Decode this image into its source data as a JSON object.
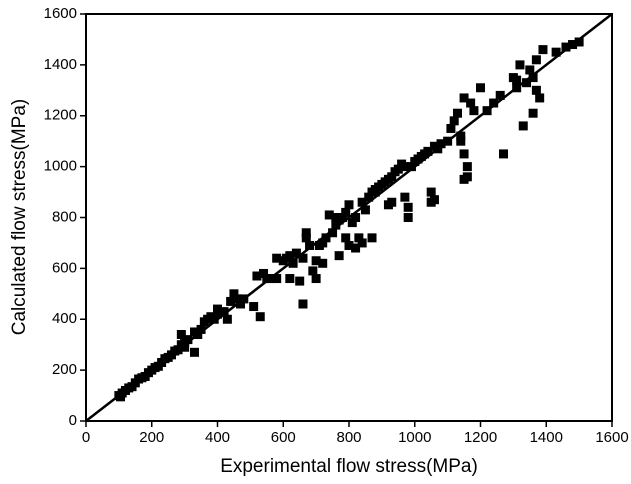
{
  "chart_data": {
    "type": "scatter",
    "x_label": "Experimental flow stress(MPa)",
    "y_label": "Calculated flow stress(MPa)",
    "color": "#000000",
    "xlim": [
      0,
      1600
    ],
    "ylim": [
      0,
      1600
    ],
    "xticks": [
      0,
      200,
      400,
      600,
      800,
      1000,
      1200,
      1400,
      1600
    ],
    "yticks": [
      0,
      200,
      400,
      600,
      800,
      1000,
      1200,
      1400,
      1600
    ],
    "x": [
      100,
      105,
      110,
      120,
      130,
      140,
      150,
      160,
      170,
      180,
      190,
      200,
      210,
      220,
      230,
      240,
      250,
      260,
      270,
      280,
      290,
      290,
      300,
      300,
      310,
      330,
      340,
      350,
      360,
      370,
      380,
      390,
      400,
      400,
      420,
      440,
      450,
      460,
      470,
      510,
      520,
      530,
      540,
      560,
      580,
      600,
      610,
      620,
      630,
      640,
      650,
      660,
      660,
      670,
      670,
      680,
      690,
      700,
      700,
      710,
      720,
      730,
      740,
      750,
      760,
      770,
      780,
      790,
      790,
      800,
      800,
      810,
      820,
      820,
      830,
      840,
      840,
      850,
      860,
      870,
      870,
      880,
      890,
      900,
      910,
      920,
      930,
      940,
      950,
      960,
      970,
      970,
      980,
      980,
      990,
      1000,
      1010,
      1020,
      1030,
      1040,
      1050,
      1050,
      1060,
      1060,
      1070,
      1080,
      1100,
      1110,
      1120,
      1130,
      1140,
      1140,
      1150,
      1150,
      1160,
      1160,
      1150,
      1170,
      1180,
      1200,
      1220,
      1240,
      1260,
      1270,
      1300,
      1310,
      1310,
      1320,
      1330,
      1340,
      1350,
      1360,
      1360,
      1370,
      1370,
      1380,
      1390,
      1430,
      1460,
      1480,
      1500,
      920,
      930,
      720,
      760,
      770,
      580,
      550,
      480,
      430,
      330,
      620,
      880
    ],
    "values": [
      100,
      95,
      110,
      120,
      130,
      135,
      150,
      165,
      170,
      175,
      190,
      200,
      210,
      215,
      230,
      245,
      250,
      260,
      275,
      280,
      300,
      340,
      310,
      290,
      320,
      270,
      340,
      360,
      390,
      400,
      410,
      400,
      420,
      440,
      430,
      470,
      500,
      480,
      460,
      450,
      570,
      410,
      580,
      560,
      560,
      630,
      640,
      560,
      620,
      660,
      550,
      460,
      640,
      720,
      740,
      690,
      590,
      630,
      560,
      690,
      700,
      720,
      810,
      740,
      770,
      790,
      800,
      820,
      720,
      850,
      690,
      780,
      800,
      680,
      720,
      700,
      860,
      830,
      880,
      720,
      900,
      910,
      920,
      930,
      940,
      950,
      960,
      980,
      990,
      1010,
      880,
      1000,
      800,
      840,
      1000,
      1020,
      1030,
      1040,
      1050,
      1060,
      900,
      860,
      870,
      1080,
      1070,
      1090,
      1100,
      1150,
      1180,
      1210,
      1120,
      1100,
      1050,
      950,
      960,
      1000,
      1270,
      1250,
      1220,
      1310,
      1220,
      1250,
      1280,
      1050,
      1350,
      1340,
      1310,
      1400,
      1160,
      1330,
      1380,
      1350,
      1210,
      1420,
      1300,
      1270,
      1460,
      1450,
      1470,
      1480,
      1490,
      850,
      860,
      620,
      800,
      650,
      640,
      560,
      480,
      400,
      350,
      650,
      900
    ]
  }
}
